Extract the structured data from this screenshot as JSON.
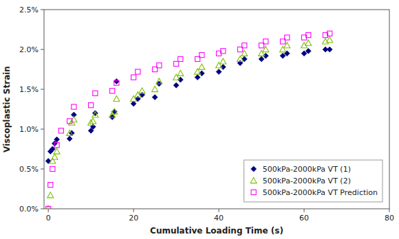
{
  "chart_data": {
    "type": "scatter",
    "xlabel": "Cumulative Loading Time (s)",
    "ylabel": "Viscoplastic Strain",
    "xlim": [
      -1,
      80
    ],
    "ylim": [
      0.0,
      0.025
    ],
    "xticks": [
      0,
      20,
      40,
      60,
      80
    ],
    "yticks": [
      {
        "value": 0.0,
        "label": "0.0%"
      },
      {
        "value": 0.005,
        "label": "0.5%"
      },
      {
        "value": 0.01,
        "label": "1.0%"
      },
      {
        "value": 0.015,
        "label": "1.5%"
      },
      {
        "value": 0.02,
        "label": "2.0%"
      },
      {
        "value": 0.025,
        "label": "2.5%"
      }
    ],
    "grid": false,
    "legend": "lower right",
    "series": [
      {
        "name": "500kPa-2000kPa VT (1)",
        "color": "#000080",
        "marker": "diamond",
        "x": [
          0.0,
          0.5,
          1.0,
          1.5,
          2.0,
          5.0,
          5.5,
          6.0,
          10.0,
          10.5,
          11.0,
          15.0,
          15.5,
          16.0,
          20.0,
          21.0,
          22.0,
          25.0,
          26.0,
          30.0,
          31.0,
          35.0,
          36.0,
          40.0,
          41.0,
          45.0,
          46.0,
          50.0,
          51.0,
          55.0,
          56.0,
          60.0,
          61.0,
          65.0,
          66.0
        ],
        "values": [
          0.006,
          0.0072,
          0.0075,
          0.0082,
          0.0087,
          0.0088,
          0.0095,
          0.0118,
          0.0098,
          0.0103,
          0.012,
          0.0115,
          0.0122,
          0.016,
          0.0132,
          0.0138,
          0.0143,
          0.014,
          0.0157,
          0.0155,
          0.0162,
          0.0165,
          0.017,
          0.0172,
          0.0178,
          0.0183,
          0.0188,
          0.0188,
          0.0192,
          0.0192,
          0.0195,
          0.0195,
          0.0198,
          0.02,
          0.02
        ]
      },
      {
        "name": "500kPa-2000kPa VT (2)",
        "color": "#7FBF00",
        "marker": "triangle-open",
        "x": [
          0.0,
          0.5,
          1.0,
          1.5,
          2.0,
          5.0,
          5.5,
          6.0,
          10.0,
          10.5,
          11.0,
          15.0,
          15.5,
          16.0,
          20.0,
          21.0,
          22.0,
          25.0,
          26.0,
          30.0,
          31.0,
          35.0,
          36.0,
          40.0,
          41.0,
          45.0,
          46.0,
          50.0,
          51.0,
          55.0,
          56.0,
          60.0,
          61.0,
          65.0,
          66.0
        ],
        "values": [
          0.0,
          0.0017,
          0.006,
          0.0065,
          0.0072,
          0.0095,
          0.0108,
          0.0112,
          0.0108,
          0.011,
          0.0118,
          0.0118,
          0.0122,
          0.0138,
          0.0138,
          0.0143,
          0.0148,
          0.015,
          0.016,
          0.0165,
          0.017,
          0.0172,
          0.0178,
          0.018,
          0.0185,
          0.0188,
          0.0195,
          0.0195,
          0.02,
          0.02,
          0.0205,
          0.0205,
          0.0208,
          0.021,
          0.0212
        ]
      },
      {
        "name": "500kPa-2000kPa VT Prediction",
        "color": "#FF00FF",
        "marker": "square-open",
        "x": [
          0.0,
          0.5,
          1.0,
          2.0,
          3.0,
          5.0,
          6.0,
          10.0,
          11.0,
          15.0,
          16.0,
          20.0,
          21.0,
          25.0,
          26.0,
          30.0,
          31.0,
          35.0,
          36.0,
          40.0,
          41.0,
          45.0,
          46.0,
          50.0,
          51.0,
          55.0,
          56.0,
          60.0,
          61.0,
          65.0,
          66.0
        ],
        "values": [
          0.0,
          0.003,
          0.005,
          0.008,
          0.0098,
          0.011,
          0.0128,
          0.013,
          0.0145,
          0.0148,
          0.0158,
          0.0165,
          0.0172,
          0.0175,
          0.018,
          0.0182,
          0.0188,
          0.0188,
          0.0193,
          0.0195,
          0.0198,
          0.02,
          0.0205,
          0.0205,
          0.021,
          0.021,
          0.0215,
          0.0215,
          0.0218,
          0.0218,
          0.022
        ]
      }
    ]
  }
}
